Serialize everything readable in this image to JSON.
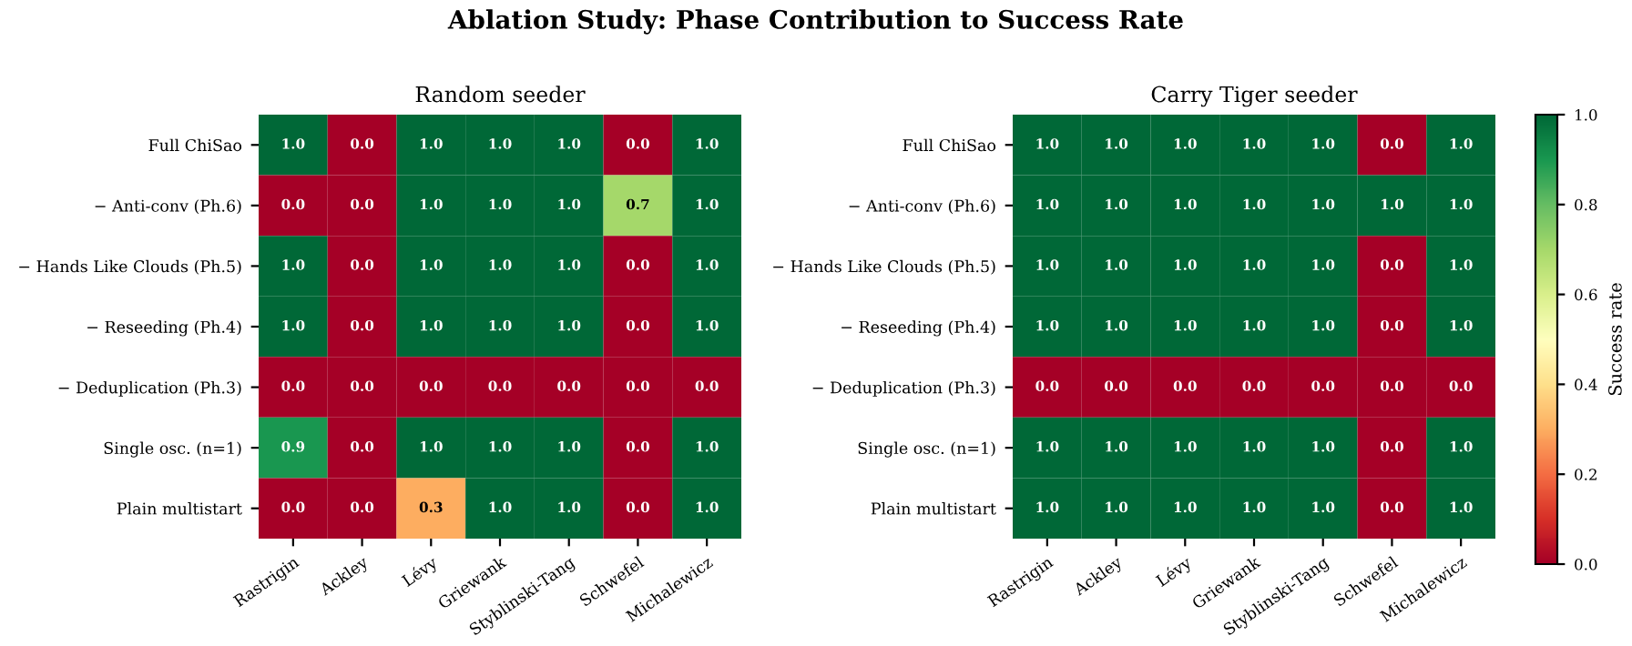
{
  "chart_data": [
    {
      "type": "heatmap",
      "title": "Random seeder",
      "annotations": [
        "Ablation Study: Phase Contribution to Success Rate"
      ],
      "categories": [
        "Rastrigin",
        "Ackley",
        "Lévy",
        "Griewank",
        "Styblinski-Tang",
        "Schwefel",
        "Michalewicz"
      ],
      "y_categories": [
        "Full ChiSao",
        "− Anti-conv (Ph.6)",
        "− Hands Like Clouds (Ph.5)",
        "− Reseeding (Ph.4)",
        "− Deduplication (Ph.3)",
        "Single osc. (n=1)",
        "Plain multistart"
      ],
      "cells": [
        [
          1.0,
          0.0,
          1.0,
          1.0,
          1.0,
          0.0,
          1.0
        ],
        [
          0.0,
          0.0,
          1.0,
          1.0,
          1.0,
          0.7,
          1.0
        ],
        [
          1.0,
          0.0,
          1.0,
          1.0,
          1.0,
          0.0,
          1.0
        ],
        [
          1.0,
          0.0,
          1.0,
          1.0,
          1.0,
          0.0,
          1.0
        ],
        [
          0.0,
          0.0,
          0.0,
          0.0,
          0.0,
          0.0,
          0.0
        ],
        [
          0.9,
          0.0,
          1.0,
          1.0,
          1.0,
          0.0,
          1.0
        ],
        [
          0.0,
          0.0,
          0.3,
          1.0,
          1.0,
          0.0,
          1.0
        ]
      ],
      "cell_labels": [
        [
          "1.0",
          "0.0",
          "1.0",
          "1.0",
          "1.0",
          "0.0",
          "1.0"
        ],
        [
          "0.0",
          "0.0",
          "1.0",
          "1.0",
          "1.0",
          "0.7",
          "1.0"
        ],
        [
          "1.0",
          "0.0",
          "1.0",
          "1.0",
          "1.0",
          "0.0",
          "1.0"
        ],
        [
          "1.0",
          "0.0",
          "1.0",
          "1.0",
          "1.0",
          "0.0",
          "1.0"
        ],
        [
          "0.0",
          "0.0",
          "0.0",
          "0.0",
          "0.0",
          "0.0",
          "0.0"
        ],
        [
          "0.9",
          "0.0",
          "1.0",
          "1.0",
          "1.0",
          "0.0",
          "1.0"
        ],
        [
          "0.0",
          "0.0",
          "0.3",
          "1.0",
          "1.0",
          "0.0",
          "1.0"
        ]
      ]
    },
    {
      "type": "heatmap",
      "title": "Carry Tiger seeder",
      "categories": [
        "Rastrigin",
        "Ackley",
        "Lévy",
        "Griewank",
        "Styblinski-Tang",
        "Schwefel",
        "Michalewicz"
      ],
      "y_categories": [
        "Full ChiSao",
        "− Anti-conv (Ph.6)",
        "− Hands Like Clouds (Ph.5)",
        "− Reseeding (Ph.4)",
        "− Deduplication (Ph.3)",
        "Single osc. (n=1)",
        "Plain multistart"
      ],
      "cells": [
        [
          1.0,
          1.0,
          1.0,
          1.0,
          1.0,
          0.0,
          1.0
        ],
        [
          1.0,
          1.0,
          1.0,
          1.0,
          1.0,
          1.0,
          1.0
        ],
        [
          1.0,
          1.0,
          1.0,
          1.0,
          1.0,
          0.0,
          1.0
        ],
        [
          1.0,
          1.0,
          1.0,
          1.0,
          1.0,
          0.0,
          1.0
        ],
        [
          0.0,
          0.0,
          0.0,
          0.0,
          0.0,
          0.0,
          0.0
        ],
        [
          1.0,
          1.0,
          1.0,
          1.0,
          1.0,
          0.0,
          1.0
        ],
        [
          1.0,
          1.0,
          1.0,
          1.0,
          1.0,
          0.0,
          1.0
        ]
      ],
      "cell_labels": [
        [
          "1.0",
          "1.0",
          "1.0",
          "1.0",
          "1.0",
          "0.0",
          "1.0"
        ],
        [
          "1.0",
          "1.0",
          "1.0",
          "1.0",
          "1.0",
          "1.0",
          "1.0"
        ],
        [
          "1.0",
          "1.0",
          "1.0",
          "1.0",
          "1.0",
          "0.0",
          "1.0"
        ],
        [
          "1.0",
          "1.0",
          "1.0",
          "1.0",
          "1.0",
          "0.0",
          "1.0"
        ],
        [
          "0.0",
          "0.0",
          "0.0",
          "0.0",
          "0.0",
          "0.0",
          "0.0"
        ],
        [
          "1.0",
          "1.0",
          "1.0",
          "1.0",
          "1.0",
          "0.0",
          "1.0"
        ],
        [
          "1.0",
          "1.0",
          "1.0",
          "1.0",
          "1.0",
          "0.0",
          "1.0"
        ]
      ],
      "clim": [
        0,
        1
      ],
      "clabel": "Success rate",
      "cticks": [
        {
          "value": 0,
          "label": "0.0"
        },
        {
          "value": 0.2,
          "label": "0.2"
        },
        {
          "value": 0.4,
          "label": "0.4"
        },
        {
          "value": 0.6,
          "label": "0.6"
        },
        {
          "value": 0.8,
          "label": "0.8"
        },
        {
          "value": 1,
          "label": "1.0"
        }
      ]
    }
  ]
}
